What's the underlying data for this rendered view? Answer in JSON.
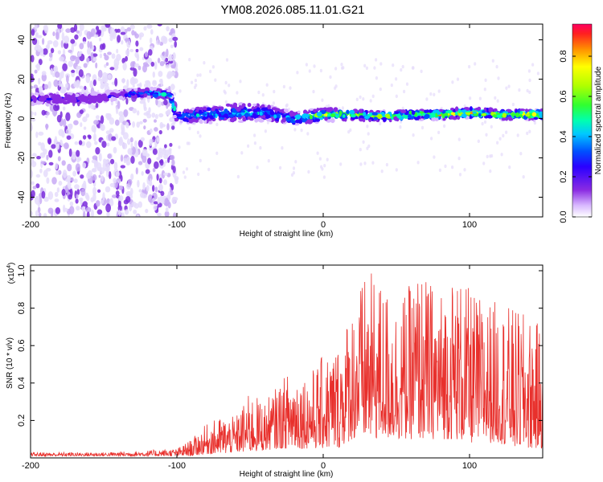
{
  "title": "YM08.2026.085.11.01.G21",
  "colors": {
    "spectrogram_band": "#0a30e0",
    "spectrogram_core": "#20d6c6",
    "spectrogram_scatter": "#7a2bdc",
    "spectrogram_faint": "#e5dcfb",
    "snr_line": "#e8302c"
  },
  "chart_data": [
    {
      "type": "heatmap",
      "panel": "spectrogram",
      "xlabel": "Height of straight line (km)",
      "ylabel": "Frequency (Hz)",
      "xlim": [
        -200,
        150
      ],
      "ylim": [
        -50,
        48
      ],
      "xticks": [
        -200,
        -100,
        0,
        100
      ],
      "xtick_labels": [
        "-200",
        "-100",
        "0",
        "100"
      ],
      "yticks": [
        -40,
        -20,
        0,
        20,
        40
      ],
      "ytick_labels": [
        "-40",
        "-20",
        "0",
        "20",
        "40"
      ],
      "band": {
        "x": [
          -200,
          -180,
          -160,
          -140,
          -120,
          -105,
          -100,
          -80,
          -60,
          -40,
          -20,
          0,
          20,
          40,
          60,
          80,
          100,
          120,
          150
        ],
        "center_hz": [
          10,
          10,
          10,
          12,
          13,
          12,
          1,
          2,
          3,
          3,
          0,
          2,
          2,
          1,
          2,
          2,
          3,
          2,
          2
        ],
        "half_width_hz": [
          4,
          4,
          4,
          3,
          3,
          3,
          4,
          5,
          6,
          5,
          4,
          4,
          3,
          3,
          3,
          3,
          3,
          3,
          3
        ],
        "peak_amplitude": [
          0.3,
          0.35,
          0.3,
          0.35,
          0.55,
          0.55,
          0.55,
          0.6,
          0.6,
          0.55,
          0.6,
          0.85,
          0.8,
          0.85,
          0.85,
          0.9,
          0.95,
          0.9,
          0.9
        ]
      },
      "scatter_extent": {
        "x_range": [
          -200,
          -100
        ],
        "freq_range": [
          -50,
          48
        ],
        "amplitude": 0.2
      },
      "colorbar": {
        "label": "Normalized spectral amplitude",
        "ticks": [
          0.0,
          0.2,
          0.4,
          0.6,
          0.8
        ],
        "tick_labels": [
          "0.0",
          "0.2",
          "0.4",
          "0.6",
          "0.8"
        ],
        "range": [
          0,
          0.96
        ]
      }
    },
    {
      "type": "line",
      "panel": "snr",
      "xlabel": "Height of straight line (km)",
      "ylabel": "SNR (10 * v/v)",
      "scale_note": "(x10",
      "scale_exp": "4",
      "scale_close": ")",
      "xlim": [
        -200,
        150
      ],
      "ylim": [
        0,
        1.03
      ],
      "xticks": [
        -200,
        -100,
        0,
        100
      ],
      "xtick_labels": [
        "-200",
        "-100",
        "0",
        "100"
      ],
      "yticks": [
        0.2,
        0.4,
        0.6,
        0.8,
        1.0
      ],
      "ytick_labels": [
        "0.2",
        "0.4",
        "0.6",
        "0.8",
        "1.0"
      ],
      "series": [
        {
          "name": "SNR",
          "envelope_x": [
            -200,
            -150,
            -120,
            -100,
            -90,
            -80,
            -70,
            -60,
            -50,
            -40,
            -30,
            -20,
            -10,
            0,
            10,
            20,
            30,
            40,
            50,
            60,
            65,
            70,
            80,
            90,
            100,
            110,
            120,
            130,
            140,
            150
          ],
          "envelope_max": [
            0.03,
            0.03,
            0.04,
            0.05,
            0.1,
            0.18,
            0.22,
            0.22,
            0.35,
            0.3,
            0.4,
            0.5,
            0.45,
            0.55,
            0.62,
            0.84,
            1.0,
            0.95,
            0.85,
            0.93,
            1.02,
            0.97,
            0.9,
            1.0,
            0.9,
            0.85,
            0.84,
            0.8,
            0.76,
            0.7
          ],
          "envelope_min": [
            0.01,
            0.01,
            0.01,
            0.01,
            0.01,
            0.02,
            0.02,
            0.03,
            0.03,
            0.04,
            0.05,
            0.05,
            0.05,
            0.05,
            0.05,
            0.1,
            0.1,
            0.1,
            0.1,
            0.1,
            0.1,
            0.1,
            0.1,
            0.1,
            0.08,
            0.08,
            0.08,
            0.05,
            0.05,
            0.05
          ]
        }
      ]
    }
  ]
}
